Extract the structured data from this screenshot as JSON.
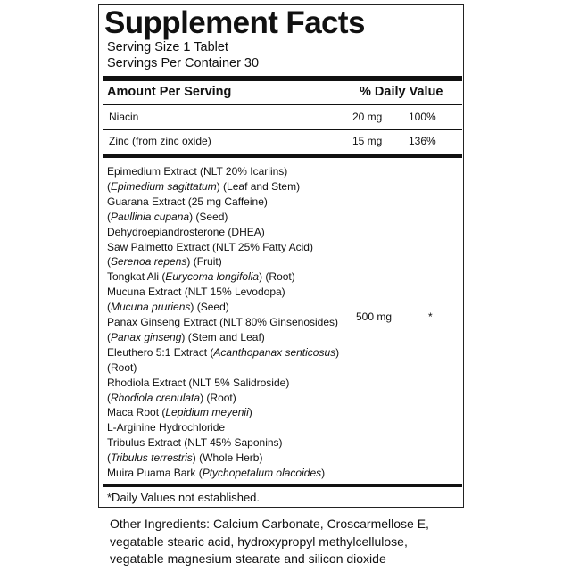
{
  "header": {
    "title": "Supplement Facts",
    "serving_size": "Serving Size 1 Tablet",
    "servings_per_container": "Servings Per Container 30"
  },
  "table": {
    "columns": [
      "Amount Per Serving",
      "% Daily Value"
    ],
    "rows": [
      [
        "Niacin",
        "20 mg",
        "100%"
      ],
      [
        "Zinc (from zinc oxide)",
        "15 mg",
        "136%"
      ]
    ]
  },
  "blend": {
    "lines": [
      [
        "Epimedium Extract (NLT 20% Icariins)"
      ],
      [
        "(",
        {
          "text": "Epimedium sagittatum",
          "italic": true
        },
        ") (Leaf and Stem)"
      ],
      [
        "Guarana Extract (25 mg Caffeine)"
      ],
      [
        "(",
        {
          "text": "Paullinia cupana",
          "italic": true
        },
        ")  (Seed)"
      ],
      [
        "Dehydroepiandrosterone (DHEA)"
      ],
      [
        "Saw Palmetto Extract (NLT 25% Fatty Acid)"
      ],
      [
        "(",
        {
          "text": "Serenoa repens",
          "italic": true
        },
        ") (Fruit)"
      ],
      [
        "Tongkat Ali (",
        {
          "text": "Eurycoma longifolia",
          "italic": true
        },
        ") (Root)"
      ],
      [
        "Mucuna Extract (NLT 15% Levodopa)"
      ],
      [
        "(",
        {
          "text": "Mucuna pruriens",
          "italic": true
        },
        ") (Seed)"
      ],
      [
        "Panax Ginseng Extract (NLT 80% Ginsenosides)"
      ],
      [
        "(",
        {
          "text": "Panax ginseng",
          "italic": true
        },
        ") (Stem and Leaf)"
      ],
      [
        "Eleuthero 5:1 Extract (",
        {
          "text": "Acanthopanax senticosus",
          "italic": true
        },
        ")"
      ],
      [
        "(Root)"
      ],
      [
        "Rhodiola Extract (NLT 5% Salidroside)"
      ],
      [
        "(",
        {
          "text": "Rhodiola crenulata",
          "italic": true
        },
        ") (Root)"
      ],
      [
        "Maca Root (",
        {
          "text": "Lepidium meyenii",
          "italic": true
        },
        ")"
      ],
      [
        "L-Arginine Hydrochloride"
      ],
      [
        "Tribulus Extract (NLT 45% Saponins)"
      ],
      [
        "(",
        {
          "text": "Tribulus terrestris",
          "italic": true
        },
        ") (Whole Herb)"
      ],
      [
        "Muira Puama Bark (",
        {
          "text": "Ptychopetalum olacoides",
          "italic": true
        },
        ")"
      ]
    ],
    "amount": "500 mg",
    "daily_value": "*"
  },
  "footnote": "*Daily Values not established.",
  "other_ingredients": [
    "Other Ingredients: Calcium Carbonate, Croscarmellose E,",
    "vegatable stearic acid, hydroxypropyl methylcellulose,",
    "vegatable magnesium stearate and silicon dioxide"
  ]
}
